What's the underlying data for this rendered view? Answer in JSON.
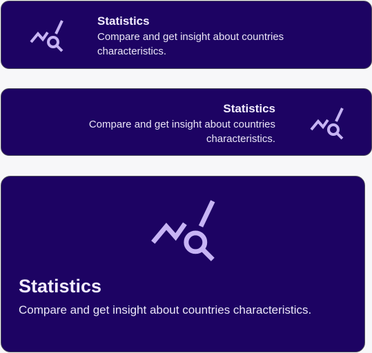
{
  "cards": [
    {
      "variant": "compact-left",
      "icon": "stats-search-icon",
      "title": "Statistics",
      "description": "Compare and get insight about countries characteristics."
    },
    {
      "variant": "compact-right",
      "icon": "stats-search-icon",
      "title": "Statistics",
      "description": "Compare and get insight about countries characteristics."
    },
    {
      "variant": "large",
      "icon": "stats-search-icon",
      "title": "Statistics",
      "description": "Compare and get insight about countries characteristics."
    }
  ],
  "colors": {
    "card_background": "#1d0363",
    "icon": "#c7b4f4",
    "page_background": "#f7f7f9"
  }
}
